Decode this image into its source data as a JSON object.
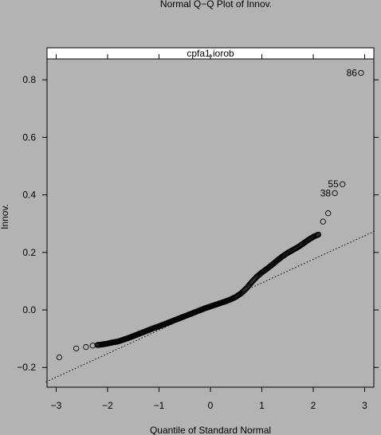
{
  "chart_data": {
    "type": "scatter",
    "title": "Normal Q−Q Plot of Innov.",
    "panel_label": "cpfa1.iorob",
    "xlabel": "Quantile of Standard Normal",
    "ylabel": "Innov.",
    "xlim": [
      -3.2,
      3.2
    ],
    "ylim": [
      -0.27,
      0.92
    ],
    "x_ticks": [
      -3,
      -2,
      -1,
      0,
      1,
      2,
      3
    ],
    "x_tick_labels": [
      "−3",
      "−2",
      "−1",
      "0",
      "1",
      "2",
      "3"
    ],
    "y_ticks": [
      -0.2,
      0.0,
      0.2,
      0.4,
      0.6,
      0.8
    ],
    "y_tick_labels": [
      "−0.2",
      "0.0",
      "0.2",
      "0.4",
      "0.6",
      "0.8"
    ],
    "reference_line": {
      "slope": 0.082,
      "intercept": 0.012,
      "style": "dotted"
    },
    "annotations": [
      {
        "label": "86",
        "x": 2.93,
        "y": 0.824
      },
      {
        "label": "55",
        "x": 2.57,
        "y": 0.437
      },
      {
        "label": "38",
        "x": 2.42,
        "y": 0.406
      }
    ],
    "grid": false,
    "marker": "open-circle",
    "points_summary": {
      "n_points": 286,
      "tail_points": [
        {
          "x": -2.94,
          "y": -0.165
        },
        {
          "x": -2.61,
          "y": -0.134
        },
        {
          "x": -2.42,
          "y": -0.129
        },
        {
          "x": -2.29,
          "y": -0.124
        },
        {
          "x": 2.19,
          "y": 0.307
        },
        {
          "x": 2.29,
          "y": 0.336
        },
        {
          "x": 2.42,
          "y": 0.406
        },
        {
          "x": 2.57,
          "y": 0.437
        },
        {
          "x": 2.93,
          "y": 0.824
        }
      ],
      "body_points": [
        [
          -2.2,
          -0.122
        ],
        [
          -2.1,
          -0.12
        ],
        [
          -2.0,
          -0.117
        ],
        [
          -1.9,
          -0.113
        ],
        [
          -1.8,
          -0.11
        ],
        [
          -1.7,
          -0.104
        ],
        [
          -1.6,
          -0.098
        ],
        [
          -1.5,
          -0.091
        ],
        [
          -1.4,
          -0.084
        ],
        [
          -1.3,
          -0.077
        ],
        [
          -1.2,
          -0.07
        ],
        [
          -1.1,
          -0.063
        ],
        [
          -1.0,
          -0.057
        ],
        [
          -0.9,
          -0.05
        ],
        [
          -0.8,
          -0.043
        ],
        [
          -0.7,
          -0.036
        ],
        [
          -0.6,
          -0.029
        ],
        [
          -0.5,
          -0.022
        ],
        [
          -0.4,
          -0.015
        ],
        [
          -0.3,
          -0.008
        ],
        [
          -0.2,
          -0.001
        ],
        [
          -0.1,
          0.006
        ],
        [
          0.0,
          0.012
        ],
        [
          0.1,
          0.018
        ],
        [
          0.2,
          0.024
        ],
        [
          0.3,
          0.03
        ],
        [
          0.4,
          0.037
        ],
        [
          0.5,
          0.046
        ],
        [
          0.6,
          0.058
        ],
        [
          0.7,
          0.075
        ],
        [
          0.8,
          0.096
        ],
        [
          0.9,
          0.115
        ],
        [
          1.0,
          0.13
        ],
        [
          1.1,
          0.143
        ],
        [
          1.2,
          0.157
        ],
        [
          1.3,
          0.172
        ],
        [
          1.4,
          0.186
        ],
        [
          1.5,
          0.198
        ],
        [
          1.6,
          0.208
        ],
        [
          1.7,
          0.218
        ],
        [
          1.8,
          0.23
        ],
        [
          1.9,
          0.243
        ],
        [
          2.0,
          0.254
        ],
        [
          2.1,
          0.262
        ]
      ]
    }
  }
}
